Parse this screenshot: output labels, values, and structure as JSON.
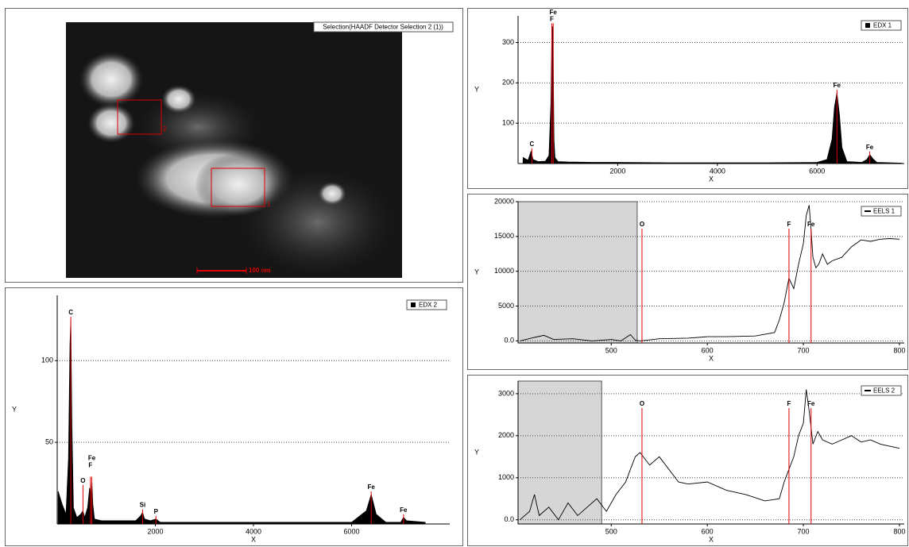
{
  "image_panel": {
    "title": "Selection(HAADF Detector Selection 2 (1))",
    "scale_bar": "100 nm",
    "regions": [
      "1",
      "2"
    ]
  },
  "chart_data": [
    {
      "type": "area",
      "xlabel": "X",
      "ylabel": "Y",
      "grid": true,
      "xlim": [
        0,
        7750
      ],
      "xticks": [
        2000,
        4000,
        6000
      ],
      "ylim": [
        0,
        366
      ],
      "yticks": [
        100,
        200,
        300
      ],
      "series": [
        {
          "name": "EDX 1",
          "color": "#000000",
          "x": [
            100,
            200,
            260,
            300,
            400,
            550,
            620,
            660,
            680,
            690,
            700,
            710,
            720,
            740,
            800,
            1000,
            1500,
            2000,
            3000,
            4000,
            5000,
            6000,
            6200,
            6300,
            6350,
            6400,
            6450,
            6500,
            6600,
            6900,
            7000,
            7060,
            7120,
            7200,
            7700
          ],
          "values": [
            15,
            8,
            30,
            10,
            5,
            6,
            20,
            150,
            330,
            340,
            320,
            200,
            60,
            15,
            5,
            4,
            3,
            3,
            2,
            2,
            2,
            3,
            10,
            60,
            140,
            175,
            120,
            40,
            5,
            3,
            10,
            22,
            12,
            3,
            1
          ]
        }
      ],
      "markers": [
        {
          "label": "C",
          "x": 277
        },
        {
          "label": "F",
          "x": 677
        },
        {
          "label": "Fe",
          "x": 705
        },
        {
          "label": "Fe",
          "x": 6400
        },
        {
          "label": "Fe",
          "x": 7058
        }
      ],
      "marker_color": "#e00000"
    },
    {
      "type": "line",
      "xlabel": "X",
      "ylabel": "Y",
      "grid": true,
      "xlim": [
        403,
        805
      ],
      "xticks": [
        500,
        600,
        700,
        800
      ],
      "ylim": [
        -300,
        20000
      ],
      "yticks": [
        {
          "value": 0,
          "label": "0.0"
        },
        5000,
        10000,
        15000,
        20000
      ],
      "shaded_xrange": [
        403,
        527
      ],
      "series": [
        {
          "name": "EELS 1",
          "color": "#000000",
          "x": [
            405,
            420,
            430,
            440,
            460,
            480,
            500,
            510,
            520,
            525,
            530,
            550,
            580,
            600,
            620,
            650,
            670,
            675,
            680,
            685,
            690,
            695,
            700,
            703,
            706,
            708,
            710,
            713,
            716,
            720,
            725,
            730,
            740,
            750,
            760,
            770,
            780,
            790,
            800
          ],
          "values": [
            0,
            500,
            800,
            200,
            300,
            0,
            200,
            0,
            900,
            100,
            0,
            300,
            400,
            600,
            600,
            700,
            1200,
            3000,
            5500,
            9000,
            7500,
            11000,
            14000,
            18000,
            19500,
            16000,
            12000,
            10500,
            11000,
            12500,
            11000,
            11500,
            12000,
            13500,
            14500,
            14300,
            14600,
            14700,
            14600
          ]
        }
      ],
      "markers": [
        {
          "label": "O",
          "x": 532
        },
        {
          "label": "F",
          "x": 685
        },
        {
          "label": "Fe",
          "x": 708
        }
      ],
      "marker_color": "#e00000"
    },
    {
      "type": "area",
      "xlabel": "X",
      "ylabel": "Y",
      "grid": true,
      "xlim": [
        0,
        8000
      ],
      "xticks": [
        2000,
        4000,
        6000
      ],
      "ylim": [
        0,
        140
      ],
      "yticks": [
        50,
        100
      ],
      "series": [
        {
          "name": "EDX 2",
          "color": "#000000",
          "x": [
            20,
            100,
            180,
            230,
            260,
            277,
            300,
            330,
            400,
            480,
            525,
            560,
            620,
            660,
            690,
            705,
            725,
            760,
            900,
            1200,
            1600,
            1700,
            1740,
            1780,
            1900,
            2013,
            2100,
            3000,
            4000,
            5000,
            6000,
            6300,
            6400,
            6500,
            6700,
            7000,
            7058,
            7120,
            7500
          ],
          "values": [
            20,
            12,
            6,
            40,
            110,
            125,
            60,
            10,
            4,
            6,
            8,
            4,
            10,
            22,
            18,
            27,
            12,
            3,
            2,
            2,
            2,
            5,
            7,
            3,
            2,
            3,
            1,
            1,
            1,
            1,
            1,
            8,
            18,
            6,
            1,
            1,
            4,
            2,
            1
          ]
        }
      ],
      "markers": [
        {
          "label": "C",
          "x": 277
        },
        {
          "label": "O",
          "x": 525
        },
        {
          "label": "F",
          "x": 677
        },
        {
          "label": "Fe",
          "x": 705
        },
        {
          "label": "Si",
          "x": 1740
        },
        {
          "label": "P",
          "x": 2013
        },
        {
          "label": "Fe",
          "x": 6400
        },
        {
          "label": "Fe",
          "x": 7058
        }
      ],
      "marker_color": "#e00000"
    },
    {
      "type": "line",
      "xlabel": "X",
      "ylabel": "Y",
      "grid": true,
      "xlim": [
        403,
        805
      ],
      "xticks": [
        500,
        600,
        700,
        800
      ],
      "ylim": [
        -100,
        3300
      ],
      "yticks": [
        {
          "value": 0,
          "label": "0.0"
        },
        1000,
        2000,
        3000
      ],
      "shaded_xrange": [
        403,
        490
      ],
      "series": [
        {
          "name": "EELS 2",
          "color": "#000000",
          "x": [
            405,
            415,
            420,
            425,
            435,
            445,
            455,
            465,
            475,
            485,
            495,
            505,
            515,
            520,
            525,
            530,
            540,
            550,
            560,
            570,
            580,
            600,
            620,
            640,
            660,
            675,
            680,
            685,
            690,
            695,
            700,
            703,
            706,
            710,
            715,
            720,
            730,
            740,
            750,
            760,
            770,
            780,
            790,
            800
          ],
          "values": [
            0,
            200,
            600,
            100,
            300,
            0,
            400,
            100,
            300,
            500,
            200,
            600,
            900,
            1200,
            1500,
            1600,
            1300,
            1500,
            1200,
            900,
            850,
            900,
            700,
            600,
            450,
            500,
            900,
            1200,
            1500,
            2000,
            2300,
            3100,
            2600,
            1800,
            2100,
            1900,
            1800,
            1900,
            2000,
            1850,
            1900,
            1800,
            1750,
            1700
          ]
        }
      ],
      "markers": [
        {
          "label": "O",
          "x": 532
        },
        {
          "label": "F",
          "x": 685
        },
        {
          "label": "Fe",
          "x": 708
        }
      ],
      "marker_color": "#e00000"
    }
  ]
}
